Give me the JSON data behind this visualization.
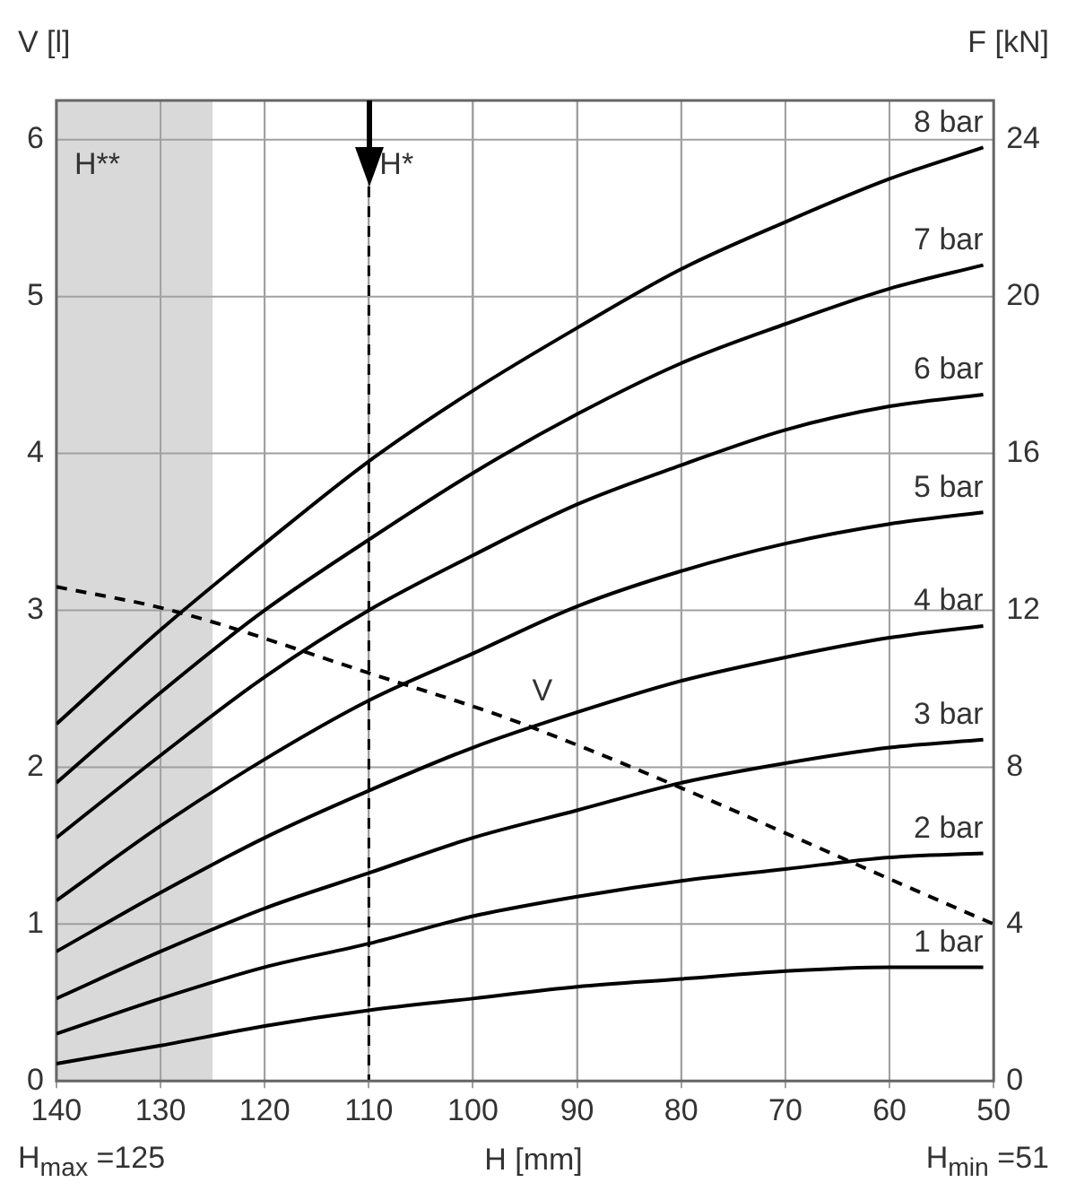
{
  "chart_data": {
    "type": "line",
    "xlabel": "H [mm]",
    "ylabel": "V [l]",
    "y2label": "F [kN]",
    "xlim": [
      140,
      50
    ],
    "xticks": [
      140,
      130,
      120,
      110,
      100,
      90,
      80,
      70,
      60,
      50
    ],
    "ylim": [
      0,
      6.25
    ],
    "yticks": [
      0,
      1,
      2,
      3,
      4,
      5,
      6
    ],
    "y2lim": [
      0,
      25
    ],
    "y2ticks": [
      0,
      4,
      8,
      12,
      16,
      20,
      24
    ],
    "grid": true,
    "legend": false,
    "marker": "none",
    "series": [
      {
        "name": "8 bar",
        "color": "#000000",
        "axis": "y2",
        "x": [
          140,
          130,
          120,
          110,
          100,
          90,
          80,
          70,
          60,
          51
        ],
        "values": [
          9.1,
          11.5,
          13.7,
          15.8,
          17.6,
          19.2,
          20.7,
          21.9,
          23.0,
          23.8
        ]
      },
      {
        "name": "7 bar",
        "color": "#000000",
        "axis": "y2",
        "x": [
          140,
          130,
          120,
          110,
          100,
          90,
          80,
          70,
          60,
          51
        ],
        "values": [
          7.6,
          9.9,
          12.0,
          13.8,
          15.5,
          17.0,
          18.3,
          19.3,
          20.2,
          20.8
        ]
      },
      {
        "name": "6 bar",
        "color": "#000000",
        "axis": "y2",
        "x": [
          140,
          130,
          120,
          110,
          100,
          90,
          80,
          70,
          60,
          51
        ],
        "values": [
          6.2,
          8.3,
          10.3,
          12.0,
          13.4,
          14.7,
          15.7,
          16.6,
          17.2,
          17.5
        ]
      },
      {
        "name": "5 bar",
        "color": "#000000",
        "axis": "y2",
        "x": [
          140,
          130,
          120,
          110,
          100,
          90,
          80,
          70,
          60,
          51
        ],
        "values": [
          4.6,
          6.5,
          8.2,
          9.7,
          10.9,
          12.1,
          13.0,
          13.7,
          14.2,
          14.5
        ]
      },
      {
        "name": "4 bar",
        "color": "#000000",
        "axis": "y2",
        "x": [
          140,
          130,
          120,
          110,
          100,
          90,
          80,
          70,
          60,
          51
        ],
        "values": [
          3.3,
          4.8,
          6.2,
          7.4,
          8.5,
          9.4,
          10.2,
          10.8,
          11.3,
          11.6
        ]
      },
      {
        "name": "3 bar",
        "color": "#000000",
        "axis": "y2",
        "x": [
          140,
          130,
          120,
          110,
          100,
          90,
          80,
          70,
          60,
          51
        ],
        "values": [
          2.1,
          3.3,
          4.4,
          5.3,
          6.2,
          6.9,
          7.6,
          8.1,
          8.5,
          8.7
        ]
      },
      {
        "name": "2 bar",
        "color": "#000000",
        "axis": "y2",
        "x": [
          140,
          130,
          120,
          110,
          100,
          90,
          80,
          70,
          60,
          51
        ],
        "values": [
          1.2,
          2.1,
          2.9,
          3.5,
          4.2,
          4.7,
          5.1,
          5.4,
          5.7,
          5.8
        ]
      },
      {
        "name": "1 bar",
        "color": "#000000",
        "axis": "y2",
        "x": [
          140,
          130,
          120,
          110,
          100,
          90,
          80,
          70,
          60,
          51
        ],
        "values": [
          0.44,
          0.9,
          1.4,
          1.8,
          2.1,
          2.4,
          2.6,
          2.8,
          2.9,
          2.9
        ]
      },
      {
        "name": "V",
        "color": "#000000",
        "axis": "y",
        "line_style": "dashed",
        "x": [
          140,
          129,
          110,
          95,
          50
        ],
        "values": [
          3.15,
          3.0,
          2.6,
          2.27,
          1.0
        ]
      }
    ],
    "bands": [
      {
        "axis": "x",
        "from": 140,
        "to": 125,
        "label": "H**",
        "color": "#d9d9d9"
      }
    ],
    "ref_lines": [
      {
        "axis": "x",
        "value": 110,
        "label": "H*",
        "line_style": "dashed",
        "color": "#000000"
      }
    ],
    "annotations": [
      "H$_{max}$ =125",
      "H$_{min}$ =51"
    ]
  }
}
